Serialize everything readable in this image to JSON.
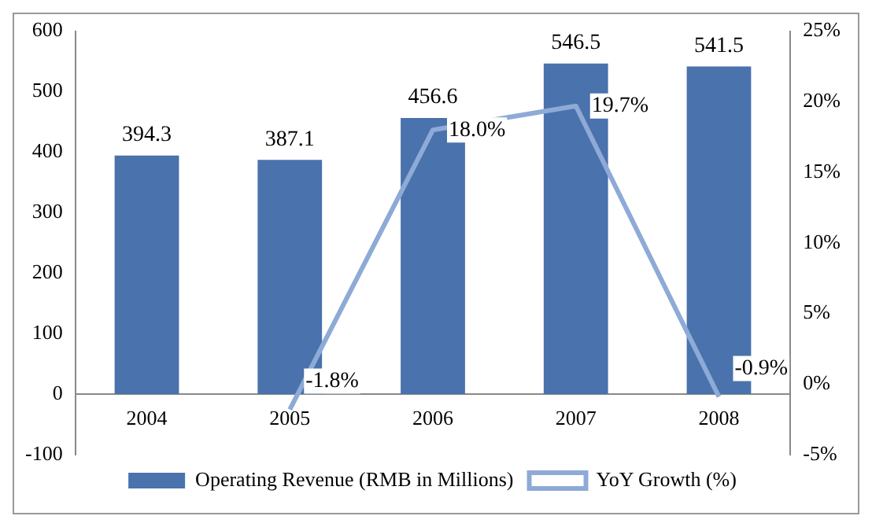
{
  "chart_data": {
    "type": "bar",
    "categories": [
      "2004",
      "2005",
      "2006",
      "2007",
      "2008"
    ],
    "series": [
      {
        "name": "Operating Revenue (RMB in Millions)",
        "color": "#4a72ac",
        "values": [
          394.3,
          387.1,
          456.6,
          546.5,
          541.5
        ],
        "value_labels": [
          "394.3",
          "387.1",
          "456.6",
          "546.5",
          "541.5"
        ]
      },
      {
        "name": "YoY Growth (%)",
        "type": "line",
        "axis": "y2",
        "color": "#8eaad6",
        "values": [
          null,
          -1.8,
          18.0,
          19.7,
          -0.9
        ],
        "value_labels": [
          null,
          "-1.8%",
          "18.0%",
          "19.7%",
          "-0.9%"
        ]
      }
    ],
    "ylim": [
      -100,
      600
    ],
    "yticks": [
      -100,
      0,
      100,
      200,
      300,
      400,
      500,
      600
    ],
    "y2lim": [
      -5,
      25
    ],
    "y2ticks": [
      {
        "value": -5,
        "label": "-5%"
      },
      {
        "value": 0,
        "label": "0%"
      },
      {
        "value": 5,
        "label": "5%"
      },
      {
        "value": 10,
        "label": "10%"
      },
      {
        "value": 15,
        "label": "15%"
      },
      {
        "value": 20,
        "label": "20%"
      },
      {
        "value": 25,
        "label": "25%"
      }
    ],
    "grid": false,
    "legend": "bottom",
    "marker": "none",
    "line_style": "solid"
  }
}
